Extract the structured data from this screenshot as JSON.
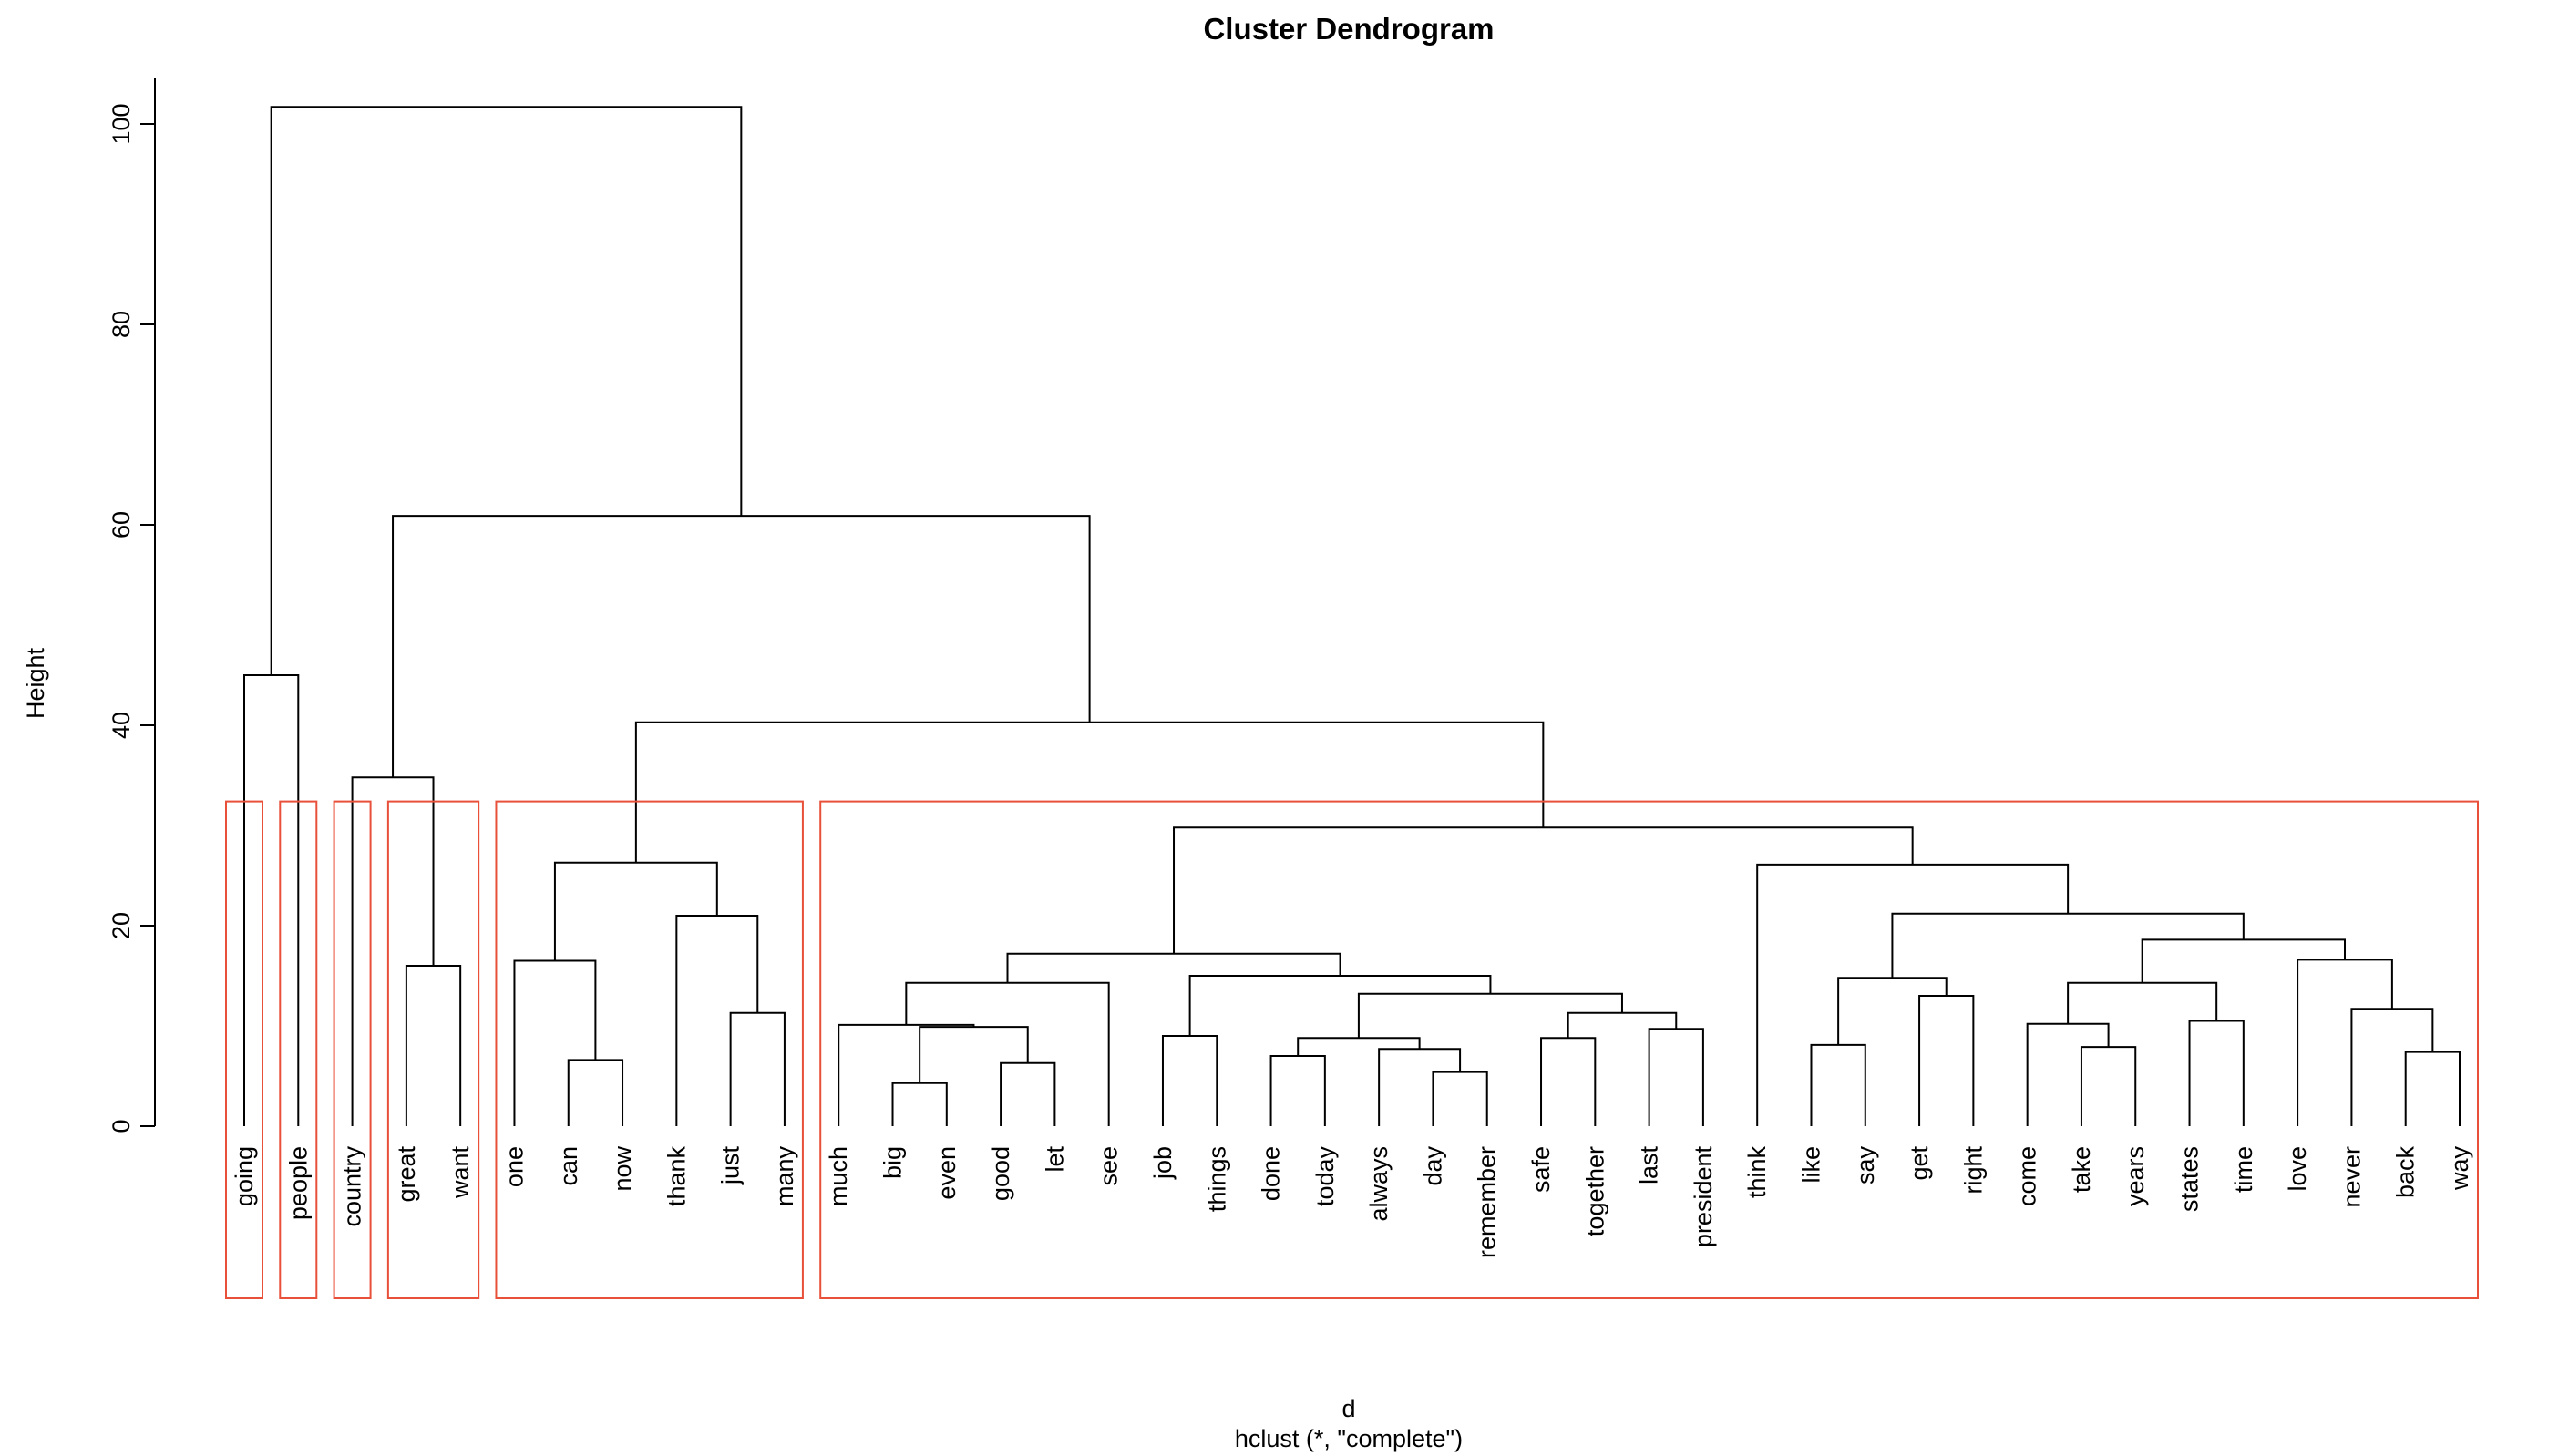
{
  "chart_data": {
    "type": "dendrogram",
    "title": "Cluster Dendrogram",
    "ylabel": "Height",
    "xlabel": "d",
    "sub": "hclust (*, \"complete\")",
    "ylim": [
      0,
      100
    ],
    "yticks": [
      0,
      20,
      40,
      60,
      80,
      100
    ],
    "grid": false,
    "colors": {
      "branch": "#000000",
      "rect": "#e8503a"
    },
    "leaves": [
      "going",
      "people",
      "country",
      "great",
      "want",
      "one",
      "can",
      "now",
      "thank",
      "just",
      "many",
      "much",
      "big",
      "even",
      "good",
      "let",
      "see",
      "job",
      "things",
      "done",
      "today",
      "always",
      "day",
      "remember",
      "safe",
      "together",
      "last",
      "president",
      "think",
      "like",
      "say",
      "get",
      "right",
      "come",
      "take",
      "years",
      "states",
      "time",
      "love",
      "never",
      "back",
      "way"
    ],
    "merges": [
      [
        -13,
        -14,
        4.3
      ],
      [
        -24,
        -23,
        5.4
      ],
      [
        -15,
        -16,
        6.3
      ],
      [
        -8,
        -7,
        6.6
      ],
      [
        -21,
        -20,
        7.0
      ],
      [
        -42,
        -41,
        7.4
      ],
      [
        -22,
        2,
        7.7
      ],
      [
        -35,
        -36,
        7.9
      ],
      [
        -30,
        -31,
        8.1
      ],
      [
        -25,
        -26,
        8.8
      ],
      [
        5,
        7,
        8.8
      ],
      [
        -18,
        -19,
        9.0
      ],
      [
        -27,
        -28,
        9.7
      ],
      [
        3,
        1,
        9.9
      ],
      [
        -12,
        14,
        10.1
      ],
      [
        -34,
        8,
        10.2
      ],
      [
        -37,
        -38,
        10.5
      ],
      [
        -10,
        -11,
        11.3
      ],
      [
        10,
        13,
        11.3
      ],
      [
        -40,
        6,
        11.7
      ],
      [
        11,
        19,
        13.2
      ],
      [
        -32,
        -33,
        13.0
      ],
      [
        16,
        17,
        14.3
      ],
      [
        -17,
        15,
        14.3
      ],
      [
        9,
        22,
        14.8
      ],
      [
        12,
        21,
        15.0
      ],
      [
        -5,
        -4,
        16.0
      ],
      [
        -6,
        4,
        16.5
      ],
      [
        -39,
        20,
        16.6
      ],
      [
        24,
        26,
        17.2
      ],
      [
        23,
        29,
        18.6
      ],
      [
        -9,
        18,
        21.0
      ],
      [
        25,
        31,
        21.2
      ],
      [
        28,
        32,
        26.3
      ],
      [
        -29,
        33,
        26.1
      ],
      [
        30,
        35,
        29.8
      ],
      [
        -3,
        27,
        34.8
      ],
      [
        34,
        36,
        40.3
      ],
      [
        -1,
        -2,
        45.0
      ],
      [
        37,
        38,
        60.9
      ],
      [
        39,
        40,
        101.7
      ]
    ],
    "clusters": [
      [
        "going"
      ],
      [
        "people"
      ],
      [
        "country"
      ],
      [
        "great",
        "want"
      ],
      [
        "one",
        "can",
        "now",
        "thank",
        "just",
        "many"
      ],
      [
        "much",
        "big",
        "even",
        "good",
        "let",
        "see",
        "job",
        "things",
        "done",
        "today",
        "always",
        "day",
        "remember",
        "safe",
        "together",
        "last",
        "president",
        "think",
        "like",
        "say",
        "get",
        "right",
        "come",
        "take",
        "years",
        "states",
        "time",
        "love",
        "never",
        "back",
        "way"
      ]
    ],
    "cut_height": 32.4
  }
}
